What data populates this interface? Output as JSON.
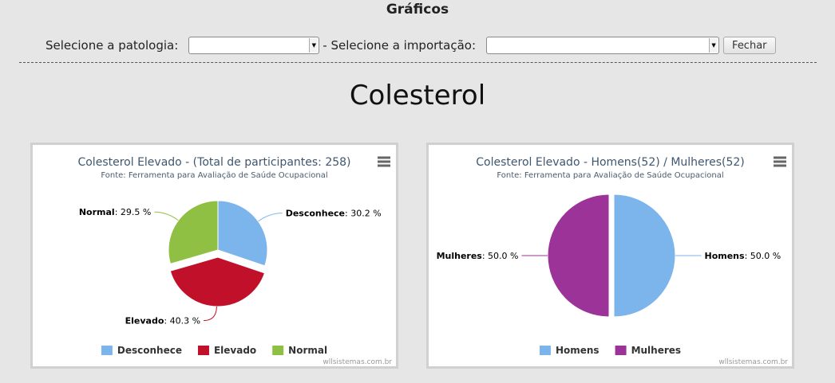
{
  "page": {
    "title": "Gráficos"
  },
  "filters": {
    "patologia_label": "Selecione a patologia:",
    "patologia_value": "",
    "importacao_label": "- Selecione a importação:",
    "importacao_value": "",
    "close_label": "Fechar"
  },
  "section": {
    "title": "Colesterol"
  },
  "chart_data": [
    {
      "type": "pie",
      "title": "Colesterol Elevado - (Total de participantes: 258)",
      "subtitle": "Fonte: Ferramenta para Avaliação de Saúde Ocupacional",
      "credits": "wllsistemas.com.br",
      "legend_position": "bottom",
      "slices": [
        {
          "name": "Desconhece",
          "value": 30.2,
          "label_value": "30.2 %",
          "color": "#7cb5ec",
          "sliced": false
        },
        {
          "name": "Elevado",
          "value": 40.3,
          "label_value": "40.3 %",
          "color": "#c0102a",
          "sliced": true
        },
        {
          "name": "Normal",
          "value": 29.5,
          "label_value": "29.5 %",
          "color": "#90c043",
          "sliced": false
        }
      ]
    },
    {
      "type": "pie",
      "title": "Colesterol Elevado - Homens(52) / Mulheres(52)",
      "subtitle": "Fonte: Ferramenta para Avaliação de Saúde Ocupacional",
      "credits": "wllsistemas.com.br",
      "legend_position": "bottom",
      "slices": [
        {
          "name": "Homens",
          "value": 50.0,
          "label_value": "50.0 %",
          "color": "#7cb5ec",
          "sliced": false
        },
        {
          "name": "Mulheres",
          "value": 50.0,
          "label_value": "50.0 %",
          "color": "#9b3399",
          "sliced": true
        }
      ]
    }
  ]
}
